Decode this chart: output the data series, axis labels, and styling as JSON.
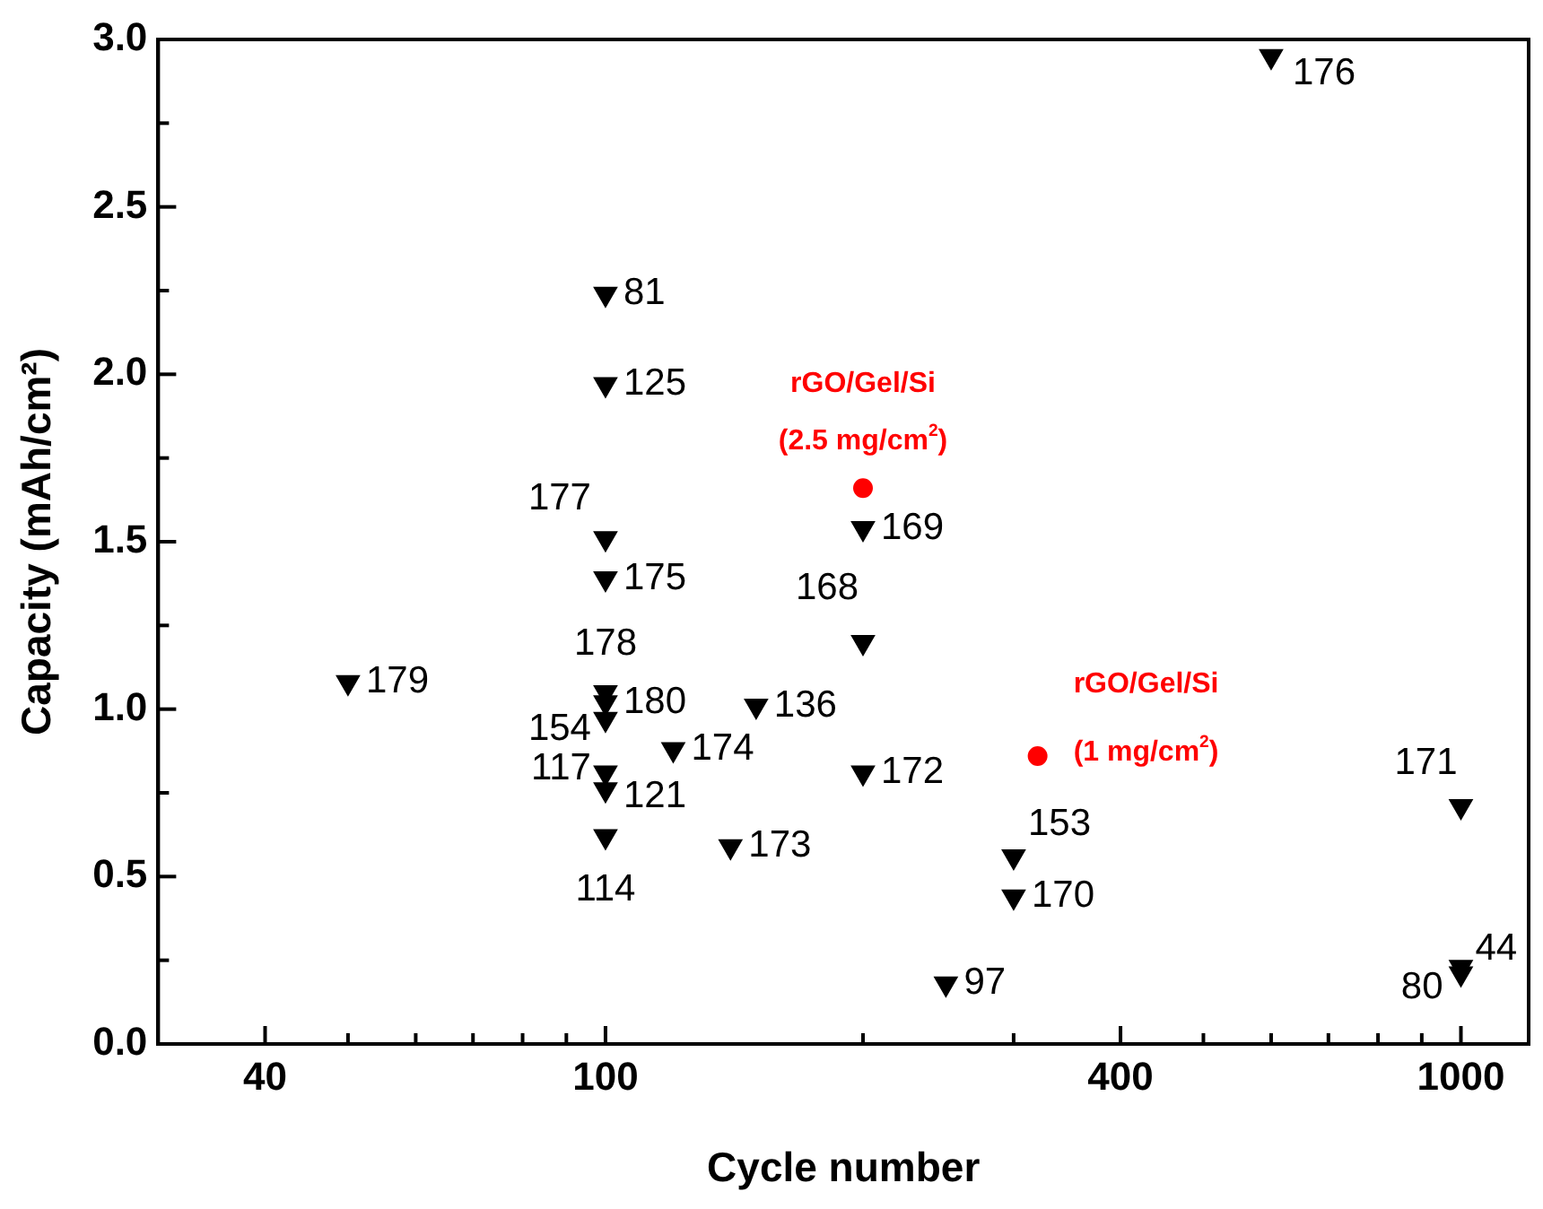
{
  "chart_data": {
    "type": "scatter",
    "xlabel": "Cycle number",
    "ylabel": "Capacity (mAh/cm²)",
    "log": "x",
    "xlim": [
      30,
      1200
    ],
    "xticks": [
      40,
      {
        "value": 50,
        "label": null
      },
      {
        "value": 60,
        "label": null
      },
      {
        "value": 70,
        "label": null
      },
      {
        "value": 80,
        "label": null
      },
      {
        "value": 90,
        "label": null
      },
      100,
      {
        "value": 200,
        "label": null
      },
      {
        "value": 300,
        "label": null
      },
      400,
      {
        "value": 500,
        "label": null
      },
      {
        "value": 600,
        "label": null
      },
      {
        "value": 700,
        "label": null
      },
      {
        "value": 800,
        "label": null
      },
      {
        "value": 900,
        "label": null
      },
      1000
    ],
    "ylim": [
      0,
      3
    ],
    "yticks": [
      {
        "value": 0,
        "label": "0.0"
      },
      {
        "value": 0.25,
        "label": null
      },
      0.5,
      {
        "value": 0.75,
        "label": null
      },
      {
        "value": 1,
        "label": "1.0"
      },
      {
        "value": 1.25,
        "label": null
      },
      1.5,
      {
        "value": 1.75,
        "label": null
      },
      {
        "value": 2,
        "label": "2.0"
      },
      {
        "value": 2.25,
        "label": null
      },
      2.5,
      {
        "value": 2.75,
        "label": null
      },
      {
        "value": 3,
        "label": "3.0"
      }
    ],
    "grid": false,
    "legend": false,
    "series": [
      {
        "color": "#000000",
        "marker": "triangle",
        "x": [
          100,
          100,
          100,
          100,
          100,
          100,
          100,
          100,
          100,
          100,
          50,
          120,
          150,
          140,
          200,
          200,
          200,
          250,
          300,
          300,
          600,
          1000,
          1000,
          1000
        ],
        "values": [
          2.24,
          1.97,
          1.51,
          1.39,
          1.05,
          1.02,
          0.97,
          0.81,
          0.76,
          0.62,
          1.08,
          0.88,
          1.01,
          0.59,
          1.2,
          1.54,
          0.81,
          0.18,
          0.56,
          0.44,
          2.95,
          0.71,
          0.21,
          0.23
        ]
      },
      {
        "name": "rGO/Gel/Si (2.5 mg/cm$^{2}$)",
        "color": "#ff0000",
        "marker": "circle",
        "x": [
          200
        ],
        "values": [
          1.66
        ]
      },
      {
        "name": "rGO/Gel/Si (1 mg/cm$^{2}$)",
        "color": "#ff0000",
        "marker": "circle",
        "x": [
          320
        ],
        "values": [
          0.86
        ]
      }
    ],
    "annotations": [
      {
        "text": "81",
        "x": 100,
        "y": 2.24
      },
      {
        "text": "125",
        "x": 100,
        "y": 1.97
      },
      {
        "text": "177",
        "x": 100,
        "y": 1.51
      },
      {
        "text": "175",
        "x": 100,
        "y": 1.39
      },
      {
        "text": "178",
        "x": 100,
        "y": 1.05
      },
      {
        "text": "180",
        "x": 100,
        "y": 1.02
      },
      {
        "text": "154",
        "x": 100,
        "y": 0.97
      },
      {
        "text": "117",
        "x": 100,
        "y": 0.81
      },
      {
        "text": "121",
        "x": 100,
        "y": 0.76
      },
      {
        "text": "114",
        "x": 100,
        "y": 0.62
      },
      {
        "text": "179",
        "x": 50,
        "y": 1.08
      },
      {
        "text": "174",
        "x": 120,
        "y": 0.88
      },
      {
        "text": "136",
        "x": 150,
        "y": 1.01
      },
      {
        "text": "173",
        "x": 140,
        "y": 0.59
      },
      {
        "text": "168",
        "x": 200,
        "y": 1.2
      },
      {
        "text": "169",
        "x": 200,
        "y": 1.54
      },
      {
        "text": "172",
        "x": 200,
        "y": 0.81
      },
      {
        "text": "97",
        "x": 250,
        "y": 0.18
      },
      {
        "text": "153",
        "x": 300,
        "y": 0.56
      },
      {
        "text": "170",
        "x": 300,
        "y": 0.44
      },
      {
        "text": "176",
        "x": 600,
        "y": 2.95
      },
      {
        "text": "171",
        "x": 1000,
        "y": 0.71
      },
      {
        "text": "80",
        "x": 1000,
        "y": 0.21
      },
      {
        "text": "44",
        "x": 1000,
        "y": 0.23
      }
    ]
  }
}
